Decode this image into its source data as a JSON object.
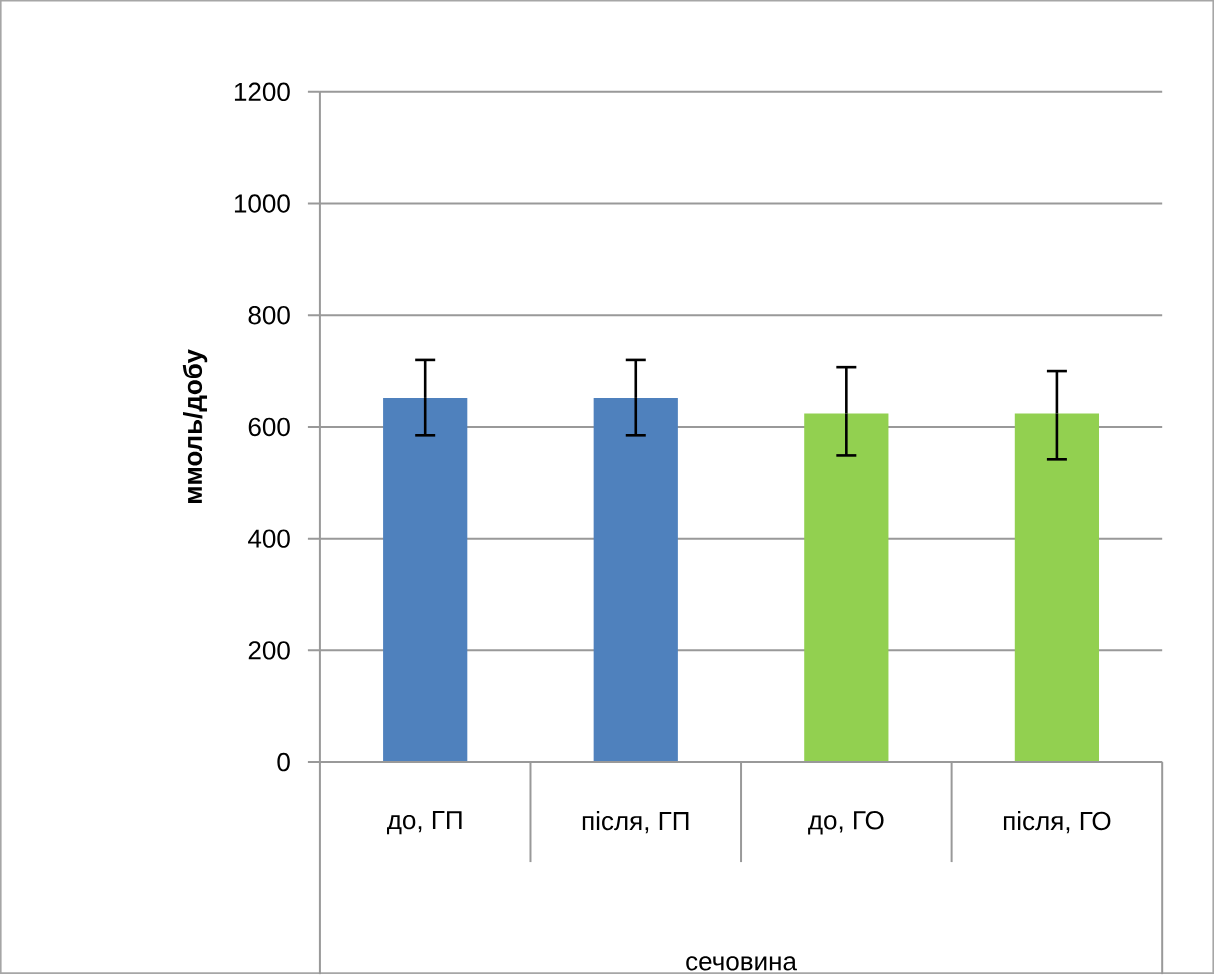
{
  "chart_data": {
    "type": "bar",
    "categories": [
      "до, ГП",
      "після, ГП",
      "до, ГО",
      "після, ГО"
    ],
    "values": [
      652,
      652,
      624,
      624
    ],
    "errors": [
      [
        585,
        720
      ],
      [
        585,
        720
      ],
      [
        549,
        707
      ],
      [
        542,
        700
      ]
    ],
    "colors": [
      "#4f81bd",
      "#4f81bd",
      "#92d050",
      "#92d050"
    ],
    "xlabel": "сечовина",
    "ylabel": "**ммоль/добу**",
    "ylim": [
      0,
      1200
    ],
    "yticks": [
      0,
      200,
      400,
      600,
      800,
      1000,
      1200
    ],
    "grid": "y"
  }
}
